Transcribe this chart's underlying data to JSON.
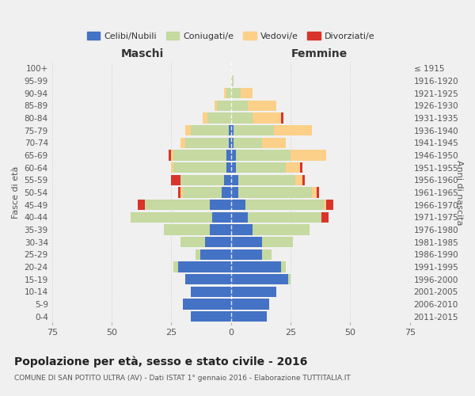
{
  "age_groups": [
    "0-4",
    "5-9",
    "10-14",
    "15-19",
    "20-24",
    "25-29",
    "30-34",
    "35-39",
    "40-44",
    "45-49",
    "50-54",
    "55-59",
    "60-64",
    "65-69",
    "70-74",
    "75-79",
    "80-84",
    "85-89",
    "90-94",
    "95-99",
    "100+"
  ],
  "birth_years": [
    "2011-2015",
    "2006-2010",
    "2001-2005",
    "1996-2000",
    "1991-1995",
    "1986-1990",
    "1981-1985",
    "1976-1980",
    "1971-1975",
    "1966-1970",
    "1961-1965",
    "1956-1960",
    "1951-1955",
    "1946-1950",
    "1941-1945",
    "1936-1940",
    "1931-1935",
    "1926-1930",
    "1921-1925",
    "1916-1920",
    "≤ 1915"
  ],
  "males": {
    "celibi": [
      17,
      20,
      17,
      19,
      22,
      13,
      11,
      9,
      8,
      9,
      4,
      3,
      2,
      2,
      1,
      1,
      0,
      0,
      0,
      0,
      0
    ],
    "coniugati": [
      0,
      0,
      0,
      0,
      2,
      2,
      10,
      19,
      34,
      27,
      16,
      18,
      22,
      22,
      18,
      16,
      10,
      6,
      2,
      0,
      0
    ],
    "vedovi": [
      0,
      0,
      0,
      0,
      0,
      0,
      0,
      0,
      0,
      0,
      1,
      0,
      1,
      1,
      2,
      2,
      2,
      1,
      1,
      0,
      0
    ],
    "divorziati": [
      0,
      0,
      0,
      0,
      0,
      0,
      0,
      0,
      0,
      3,
      1,
      4,
      0,
      1,
      0,
      0,
      0,
      0,
      0,
      0,
      0
    ]
  },
  "females": {
    "nubili": [
      15,
      16,
      19,
      24,
      21,
      13,
      13,
      9,
      7,
      6,
      3,
      3,
      2,
      2,
      1,
      1,
      0,
      0,
      0,
      0,
      0
    ],
    "coniugate": [
      0,
      0,
      0,
      1,
      2,
      4,
      13,
      24,
      31,
      33,
      31,
      24,
      21,
      23,
      12,
      17,
      9,
      7,
      4,
      1,
      0
    ],
    "vedove": [
      0,
      0,
      0,
      0,
      0,
      0,
      0,
      0,
      0,
      1,
      2,
      3,
      6,
      15,
      10,
      16,
      12,
      12,
      5,
      0,
      0
    ],
    "divorziate": [
      0,
      0,
      0,
      0,
      0,
      0,
      0,
      0,
      3,
      3,
      1,
      1,
      1,
      0,
      0,
      0,
      1,
      0,
      0,
      0,
      0
    ]
  },
  "color_celibi": "#4472c4",
  "color_coniugati": "#c5d9a0",
  "color_vedovi": "#fcd088",
  "color_divorziati": "#d9342b",
  "bg_color": "#f0f0f0",
  "grid_color": "#cccccc",
  "title": "Popolazione per età, sesso e stato civile - 2016",
  "subtitle": "COMUNE DI SAN POTITO ULTRA (AV) - Dati ISTAT 1° gennaio 2016 - Elaborazione TUTTITALIA.IT",
  "xlabel_left": "Maschi",
  "xlabel_right": "Femmine",
  "ylabel_left": "Fasce di età",
  "ylabel_right": "Anni di nascita",
  "xlim": 75
}
